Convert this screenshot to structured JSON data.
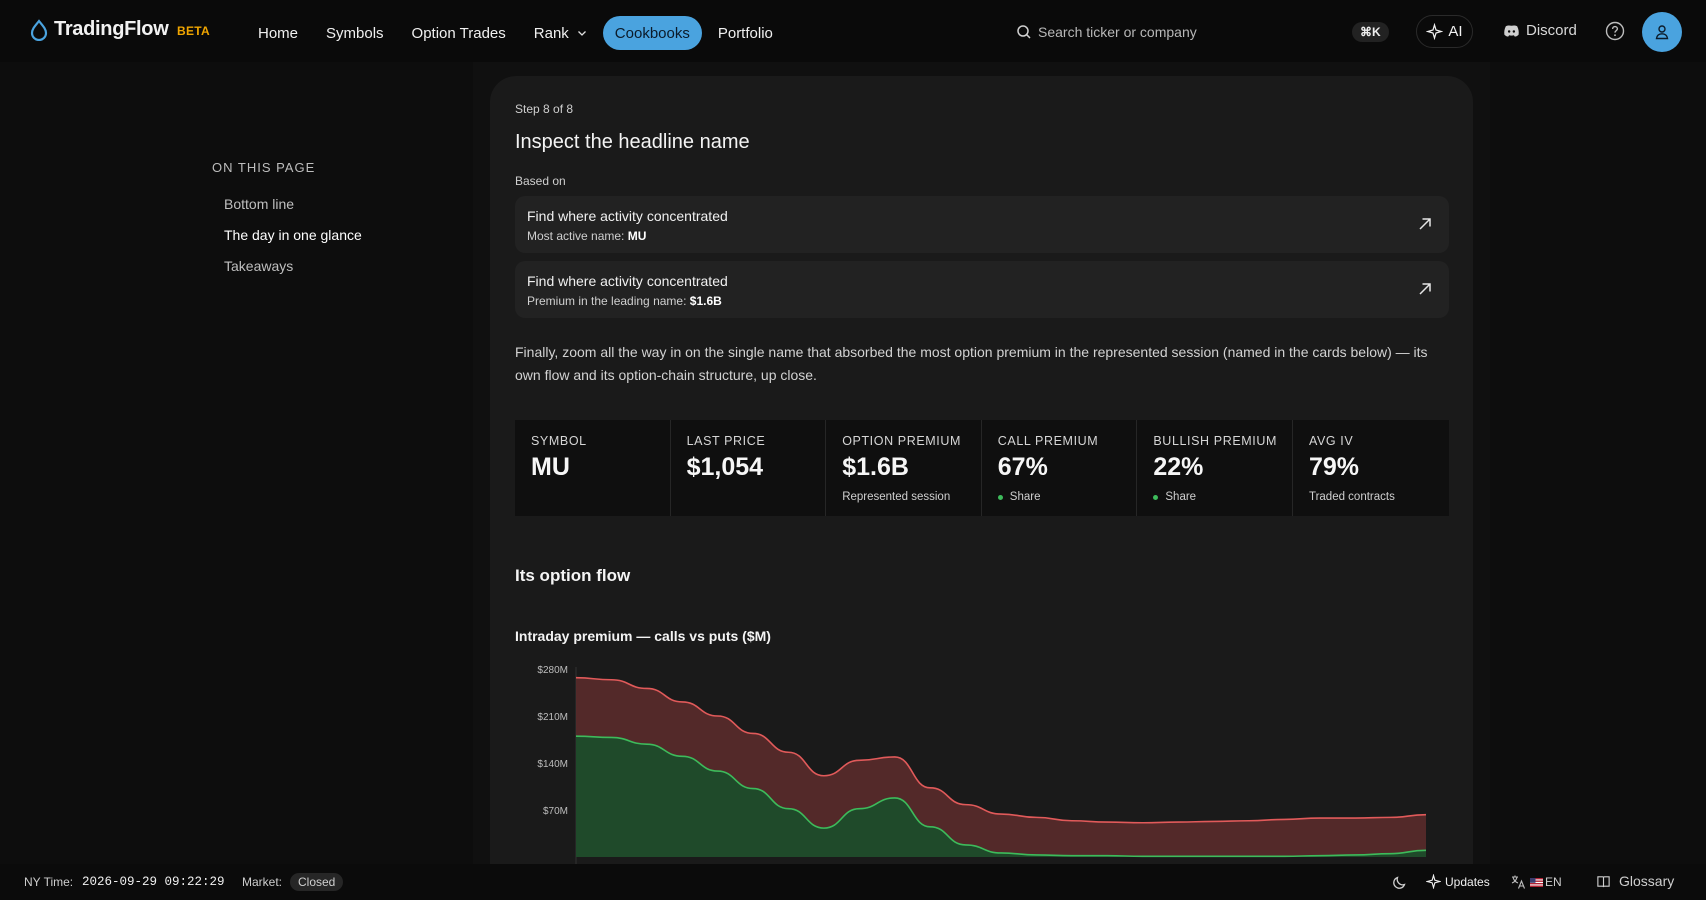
{
  "brand": {
    "name": "TradingFlow",
    "badge": "BETA"
  },
  "nav": {
    "items": [
      {
        "label": "Home"
      },
      {
        "label": "Symbols"
      },
      {
        "label": "Option Trades"
      },
      {
        "label": "Rank"
      },
      {
        "label": "Cookbooks",
        "active": true
      },
      {
        "label": "Portfolio"
      }
    ]
  },
  "search": {
    "placeholder": "Search ticker or company",
    "shortcut": "⌘K"
  },
  "header_actions": {
    "ai_label": "AI",
    "discord_label": "Discord"
  },
  "toc": {
    "title": "ON THIS PAGE",
    "items": [
      {
        "label": "Bottom line"
      },
      {
        "label": "The day in one glance",
        "current": true
      },
      {
        "label": "Takeaways"
      }
    ]
  },
  "step": {
    "progress": "Step 8 of 8",
    "headline": "Inspect the headline name",
    "based_on_label": "Based on",
    "references": [
      {
        "title": "Find where activity concentrated",
        "detail_label": "Most active name:",
        "detail_value": "MU"
      },
      {
        "title": "Find where activity concentrated",
        "detail_label": "Premium in the leading name:",
        "detail_value": "$1.6B"
      }
    ],
    "description": "Finally, zoom all the way in on the single name that absorbed the most option premium in the represented session (named in the cards below) — its own flow and its option-chain structure, up close."
  },
  "stats": [
    {
      "label": "SYMBOL",
      "value": "MU",
      "sub": ""
    },
    {
      "label": "LAST PRICE",
      "value": "$1,054",
      "sub": ""
    },
    {
      "label": "OPTION PREMIUM",
      "value": "$1.6B",
      "sub": "Represented session"
    },
    {
      "label": "CALL PREMIUM",
      "value": "67%",
      "sub": "Share",
      "dot": true
    },
    {
      "label": "BULLISH PREMIUM",
      "value": "22%",
      "sub": "Share",
      "dot": true
    },
    {
      "label": "AVG IV",
      "value": "79%",
      "sub": "Traded contracts"
    }
  ],
  "flow_section": {
    "title": "Its option flow"
  },
  "chart_title": "Intraday premium — calls vs puts ($M)",
  "colors": {
    "accent": "#4aa3df",
    "beta": "#f0a500",
    "calls": "#3dbb5b",
    "puts": "#e15a5a"
  },
  "chart_data": {
    "type": "area",
    "title": "Intraday premium — calls vs puts ($M)",
    "y_ticks": [
      "$280M",
      "$210M",
      "$140M",
      "$70M"
    ],
    "ylim": [
      0,
      280
    ],
    "x": [
      0,
      1,
      2,
      3,
      4,
      5,
      6,
      7,
      8,
      9,
      10,
      11,
      12,
      13,
      14,
      15,
      16,
      17,
      18,
      19,
      20,
      21,
      22,
      23,
      24
    ],
    "series": [
      {
        "name": "calls",
        "values": [
          180,
          178,
          168,
          150,
          128,
          102,
          72,
          43,
          72,
          88,
          45,
          18,
          6,
          3,
          2,
          2,
          1,
          1,
          1,
          1,
          1,
          2,
          3,
          5,
          10
        ]
      },
      {
        "name": "puts",
        "values": [
          87,
          86,
          83,
          81,
          82,
          82,
          84,
          78,
          72,
          61,
          58,
          60,
          58,
          56,
          52,
          50,
          50,
          51,
          52,
          53,
          55,
          56,
          55,
          54,
          53
        ]
      }
    ]
  },
  "statusbar": {
    "time_label": "NY Time:",
    "time_value": "2026-09-29 09:22:29",
    "market_label": "Market:",
    "market_status": "Closed",
    "updates_label": "Updates",
    "lang_label": "EN",
    "glossary_label": "Glossary"
  }
}
